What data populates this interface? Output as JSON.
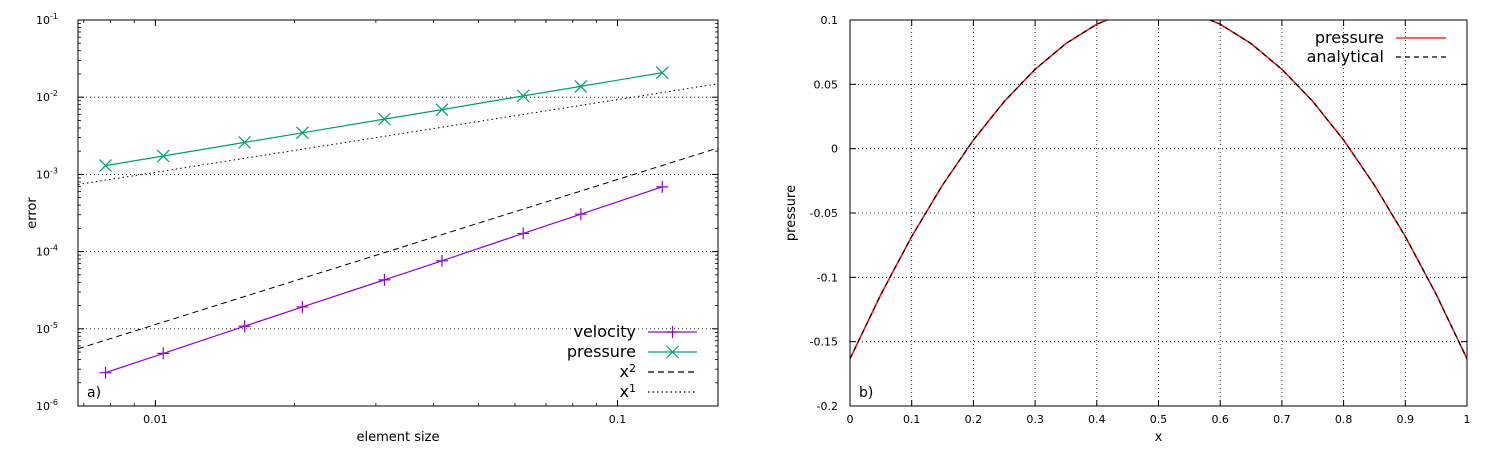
{
  "chart_data": [
    {
      "type": "line",
      "panel_label": "a)",
      "xlabel": "element size",
      "ylabel": "error",
      "xscale": "log",
      "yscale": "log",
      "xlim": [
        0.0068,
        0.165
      ],
      "ylim": [
        1e-06,
        0.1
      ],
      "x_ticks": [
        {
          "v": 0.01,
          "label": "0.01"
        },
        {
          "v": 0.1,
          "label": "0.1"
        }
      ],
      "y_ticks": [
        {
          "v": 1e-06,
          "base": "10",
          "exp": "-6"
        },
        {
          "v": 1e-05,
          "base": "10",
          "exp": "-5"
        },
        {
          "v": 0.0001,
          "base": "10",
          "exp": "-4"
        },
        {
          "v": 0.001,
          "base": "10",
          "exp": "-3"
        },
        {
          "v": 0.01,
          "base": "10",
          "exp": "-2"
        },
        {
          "v": 0.1,
          "base": "10",
          "exp": "-1"
        }
      ],
      "grid": "y",
      "legend_position": "bottom-right",
      "series": [
        {
          "name": "velocity",
          "color": "#9400d3",
          "marker": "plus",
          "dash": "solid",
          "x": [
            0.0078,
            0.0104,
            0.0156,
            0.0208,
            0.0313,
            0.0417,
            0.0625,
            0.0833,
            0.125
          ],
          "y": [
            2.7e-06,
            4.8e-06,
            1.08e-05,
            1.92e-05,
            4.3e-05,
            7.6e-05,
            0.000172,
            0.000305,
            0.00069
          ]
        },
        {
          "name": "pressure",
          "color": "#009e73",
          "marker": "cross",
          "dash": "solid",
          "x": [
            0.0078,
            0.0104,
            0.0156,
            0.0208,
            0.0313,
            0.0417,
            0.0625,
            0.0833,
            0.125
          ],
          "y": [
            0.0013,
            0.00173,
            0.0026,
            0.00346,
            0.0052,
            0.0069,
            0.0104,
            0.0138,
            0.0208
          ]
        },
        {
          "name": "x",
          "name_sup": "2",
          "color": "#000000",
          "marker": "none",
          "dash": "dashed",
          "x": [
            0.0068,
            0.165
          ],
          "y": [
            5.5e-06,
            0.0022
          ]
        },
        {
          "name": "x",
          "name_sup": "1",
          "color": "#000000",
          "marker": "none",
          "dash": "dotted",
          "x": [
            0.0068,
            0.165
          ],
          "y": [
            0.00074,
            0.0149
          ]
        }
      ]
    },
    {
      "type": "line",
      "panel_label": "b)",
      "xlabel": "x",
      "ylabel": "pressure",
      "xlim": [
        0,
        1
      ],
      "ylim": [
        -0.2,
        0.1
      ],
      "x_ticks": [
        "0",
        "0.1",
        "0.2",
        "0.3",
        "0.4",
        "0.5",
        "0.6",
        "0.7",
        "0.8",
        "0.9",
        "1"
      ],
      "y_ticks": [
        "-0.2",
        "-0.15",
        "-0.1",
        "-0.05",
        "0",
        "0.05",
        "0.1"
      ],
      "grid": "both",
      "legend_position": "top-right",
      "series": [
        {
          "name": "pressure",
          "color": "#ff0000",
          "dash": "solid",
          "x": [
            0,
            0.05,
            0.1,
            0.15,
            0.2,
            0.25,
            0.3,
            0.35,
            0.4,
            0.45,
            0.5,
            0.55,
            0.6,
            0.65,
            0.7,
            0.75,
            0.8,
            0.85,
            0.9,
            0.95,
            1
          ],
          "y": [
            -0.1633,
            -0.1133,
            -0.0683,
            -0.0283,
            0.0067,
            0.0367,
            0.0617,
            0.0817,
            0.0967,
            0.1067,
            0.1117,
            0.1067,
            0.0967,
            0.0817,
            0.0617,
            0.0367,
            0.0067,
            -0.0283,
            -0.0683,
            -0.1133,
            -0.1633
          ]
        },
        {
          "name": "analytical",
          "color": "#000000",
          "dash": "dashed",
          "x": [
            0,
            0.05,
            0.1,
            0.15,
            0.2,
            0.25,
            0.3,
            0.35,
            0.4,
            0.45,
            0.5,
            0.55,
            0.6,
            0.65,
            0.7,
            0.75,
            0.8,
            0.85,
            0.9,
            0.95,
            1
          ],
          "y": [
            -0.1633,
            -0.1133,
            -0.0683,
            -0.0283,
            0.0067,
            0.0367,
            0.0617,
            0.0817,
            0.0967,
            0.1067,
            0.1117,
            0.1067,
            0.0967,
            0.0817,
            0.0617,
            0.0367,
            0.0067,
            -0.0283,
            -0.0683,
            -0.1133,
            -0.1633
          ]
        }
      ]
    }
  ]
}
